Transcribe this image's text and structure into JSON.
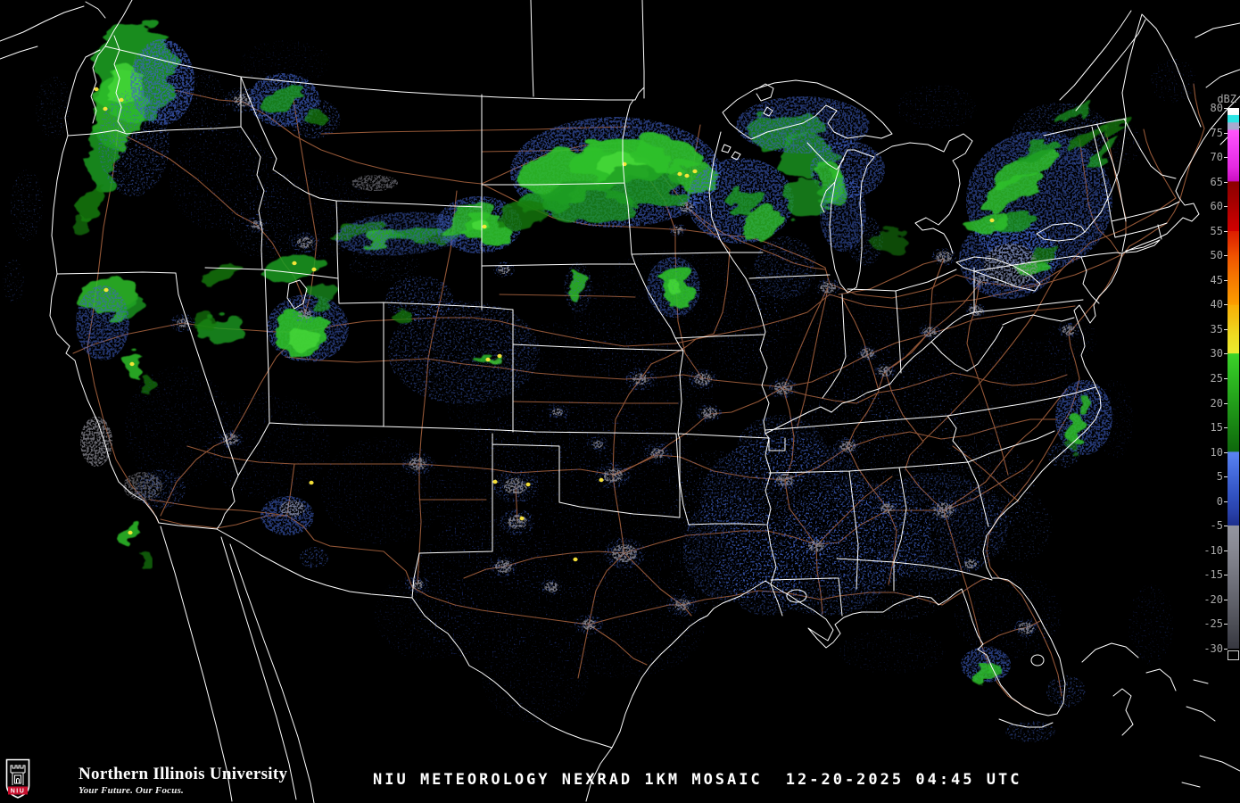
{
  "caption": {
    "title": "NIU METEOROLOGY NEXRAD 1KM MOSAIC",
    "timestamp": "12-20-2025 04:45 UTC"
  },
  "branding": {
    "shield_label": "NIU",
    "university_name": "Northern Illinois University",
    "tagline": "Your Future. Our Focus.",
    "shield_red": "#c8102e"
  },
  "colorbar": {
    "unit": "dBZ",
    "top_dbz": 80,
    "bottom_dbz": -30,
    "tick_values": [
      80,
      75,
      70,
      65,
      60,
      55,
      50,
      45,
      40,
      35,
      30,
      25,
      20,
      15,
      10,
      5,
      0,
      -5,
      -10,
      -15,
      -20,
      -25,
      -30
    ],
    "label_color": "#a9a9a9",
    "gradient_stops": [
      [
        80,
        "#ffffff"
      ],
      [
        78.6,
        "#f8fcfc"
      ],
      [
        78.5,
        "#2ae4e4"
      ],
      [
        77.1,
        "#2ae4e4"
      ],
      [
        77,
        "#a8aace"
      ],
      [
        75.6,
        "#a8aace"
      ],
      [
        75.5,
        "#ff55fa"
      ],
      [
        72,
        "#f240f2"
      ],
      [
        68,
        "#e52ae2"
      ],
      [
        65.1,
        "#cb0ec2"
      ],
      [
        65,
        "#8c0000"
      ],
      [
        61,
        "#a40000"
      ],
      [
        57,
        "#c30000"
      ],
      [
        55,
        "#d00000"
      ],
      [
        54.9,
        "#dc1e00"
      ],
      [
        52,
        "#e63a00"
      ],
      [
        50,
        "#ef5200"
      ],
      [
        46,
        "#f47300"
      ],
      [
        42,
        "#f99000"
      ],
      [
        40,
        "#fb9e00"
      ],
      [
        39.9,
        "#f8ae06"
      ],
      [
        37,
        "#f3c113"
      ],
      [
        34,
        "#eed921"
      ],
      [
        30.1,
        "#ebeb2f"
      ],
      [
        30,
        "#3dd329"
      ],
      [
        26,
        "#30be23"
      ],
      [
        22,
        "#27a91d"
      ],
      [
        18,
        "#1e9317"
      ],
      [
        14,
        "#167d11"
      ],
      [
        10.1,
        "#0e680c"
      ],
      [
        10,
        "#5b83f3"
      ],
      [
        7,
        "#4b72e3"
      ],
      [
        4,
        "#3d61d1"
      ],
      [
        1,
        "#3151c0"
      ],
      [
        -2,
        "#2942ac"
      ],
      [
        -4.9,
        "#1e308e"
      ],
      [
        -5,
        "#94959f"
      ],
      [
        -9,
        "#8a8b95"
      ],
      [
        -13,
        "#7c7d87"
      ],
      [
        -17,
        "#6d6e78"
      ],
      [
        -21,
        "#5e5f68"
      ],
      [
        -25,
        "#4d4e56"
      ],
      [
        -30,
        "#363740"
      ]
    ]
  },
  "map": {
    "background": "#000000",
    "state_border_color": "#ffffff",
    "coast_color": "#ffffff",
    "highway_color": "#9c5c3a",
    "echo_palette": {
      "clear_air_blue": "#3f62c8",
      "dark_blue": "#2c46ae",
      "light_green": "#157c11",
      "green": "#1f9c22",
      "moderate_green": "#2fc02c",
      "bright_green": "#45d838",
      "snow_gray": "#8f8f99",
      "embedded_core_yellow": "#ffe93a"
    }
  }
}
